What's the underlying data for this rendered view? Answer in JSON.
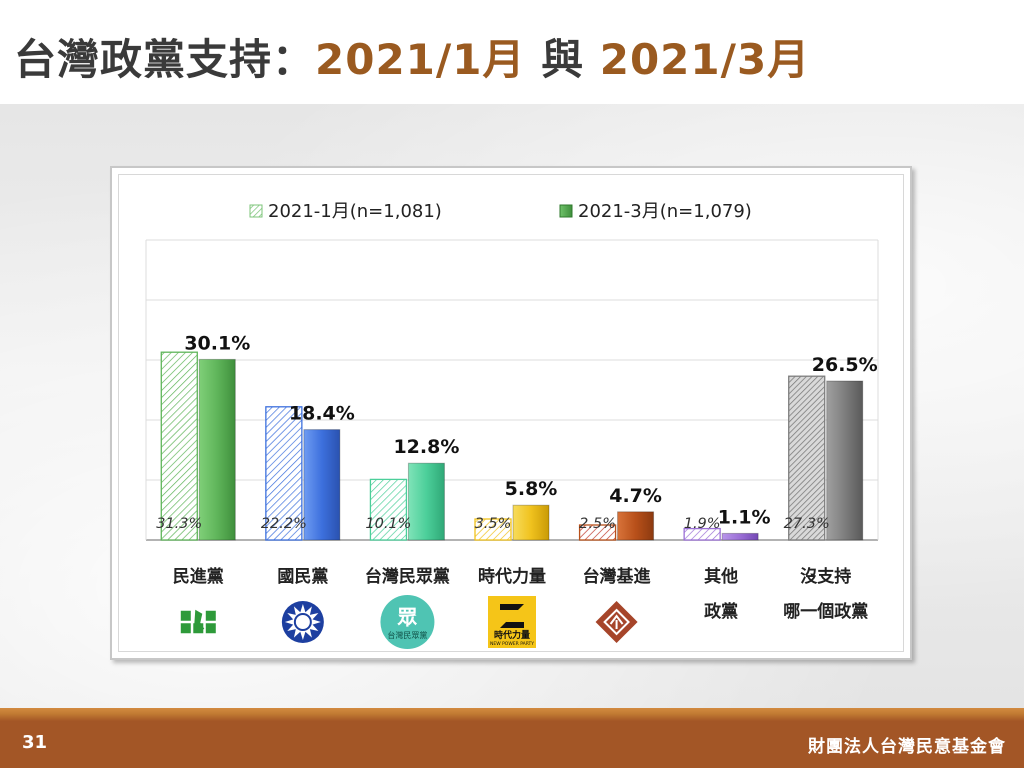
{
  "slide": {
    "title_prefix": "台灣政黨支持：",
    "title_date1": "2021/1月",
    "title_mid": " 與 ",
    "title_date2": "2021/3月",
    "page_number": "31",
    "organization": "財團法人台灣民意基金會"
  },
  "chart_data": {
    "type": "bar",
    "title": "",
    "xlabel": "",
    "ylabel": "",
    "ylim": [
      0,
      50
    ],
    "grid": true,
    "legend_position": "top",
    "categories": [
      [
        "民進黨"
      ],
      [
        "國民黨"
      ],
      [
        "台灣民眾黨"
      ],
      [
        "時代力量"
      ],
      [
        "台灣基進"
      ],
      [
        "其他",
        "政黨"
      ],
      [
        "沒支持",
        "哪一個政黨"
      ]
    ],
    "series": [
      {
        "name": "2021-1月(n=1,081)",
        "values": [
          31.3,
          22.2,
          10.1,
          3.5,
          2.5,
          1.9,
          27.3
        ],
        "labels": [
          "31.3%",
          "22.2%",
          "10.1%",
          "3.5%",
          "2.5%",
          "1.9%",
          "27.3%"
        ],
        "style": "hatched"
      },
      {
        "name": "2021-3月(n=1,079)",
        "values": [
          30.1,
          18.4,
          12.8,
          5.8,
          4.7,
          1.1,
          26.5
        ],
        "labels": [
          "30.1%",
          "18.4%",
          "12.8%",
          "5.8%",
          "4.7%",
          "1.1%",
          "26.5%"
        ],
        "style": "solid"
      }
    ],
    "colors": [
      "#5fb55a",
      "#3d70dd",
      "#4ccf9a",
      "#f0c21e",
      "#b8501a",
      "#9b6fd6",
      "#7e7e7e"
    ],
    "legend_colors": [
      "#7cc47a",
      "#4aa04a"
    ],
    "logos": [
      "dpp-logo-icon",
      "kmt-logo-icon",
      "tpp-logo-icon",
      "npp-logo-icon",
      "tsp-logo-icon"
    ],
    "logo_text": {
      "tpp_mark": "眾",
      "tpp_name": "台灣民眾黨",
      "npp_name": "時代力量",
      "npp_sub": "NEW POWER PARTY"
    }
  }
}
